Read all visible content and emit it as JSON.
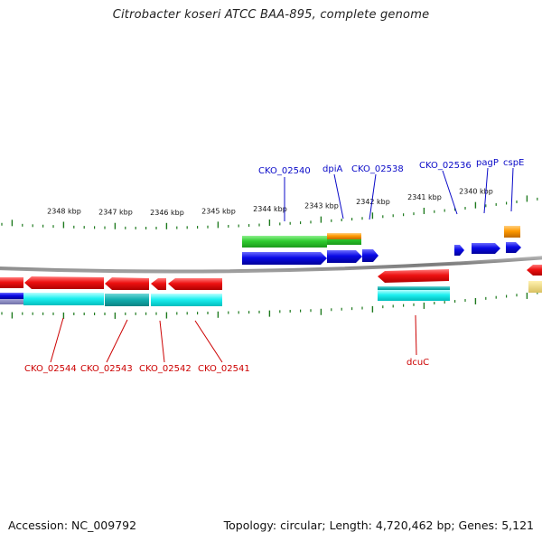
{
  "title": "Citrobacter koseri ATCC BAA-895, complete genome",
  "footer": {
    "accession": "Accession: NC_009792",
    "topology": "Topology: circular; Length: 4,720,462 bp; Genes: 5,121"
  },
  "colors": {
    "backbone": "#8a8a8a",
    "tick": "#1e7a1e",
    "forward_gene": "#0a0ae6",
    "reverse_gene": "#e80a0a",
    "forward_cds": "#2ecc2e",
    "reverse_cds": "#00ffff",
    "rna": "#ff9900",
    "forward_label": "#0a0ac8",
    "reverse_label": "#cc0000"
  },
  "kbp_labels": [
    "2348 kbp",
    "2347 kbp",
    "2346 kbp",
    "2345 kbp",
    "2344 kbp",
    "2343 kbp",
    "2342 kbp",
    "2341 kbp",
    "2340 kbp"
  ],
  "forward_labels": [
    "CKO_02540",
    "dpiA",
    "CKO_02538",
    "CKO_02536",
    "pagP",
    "cspE"
  ],
  "reverse_labels": [
    "CKO_02544",
    "CKO_02543",
    "CKO_02542",
    "CKO_02541",
    "dcuC"
  ]
}
